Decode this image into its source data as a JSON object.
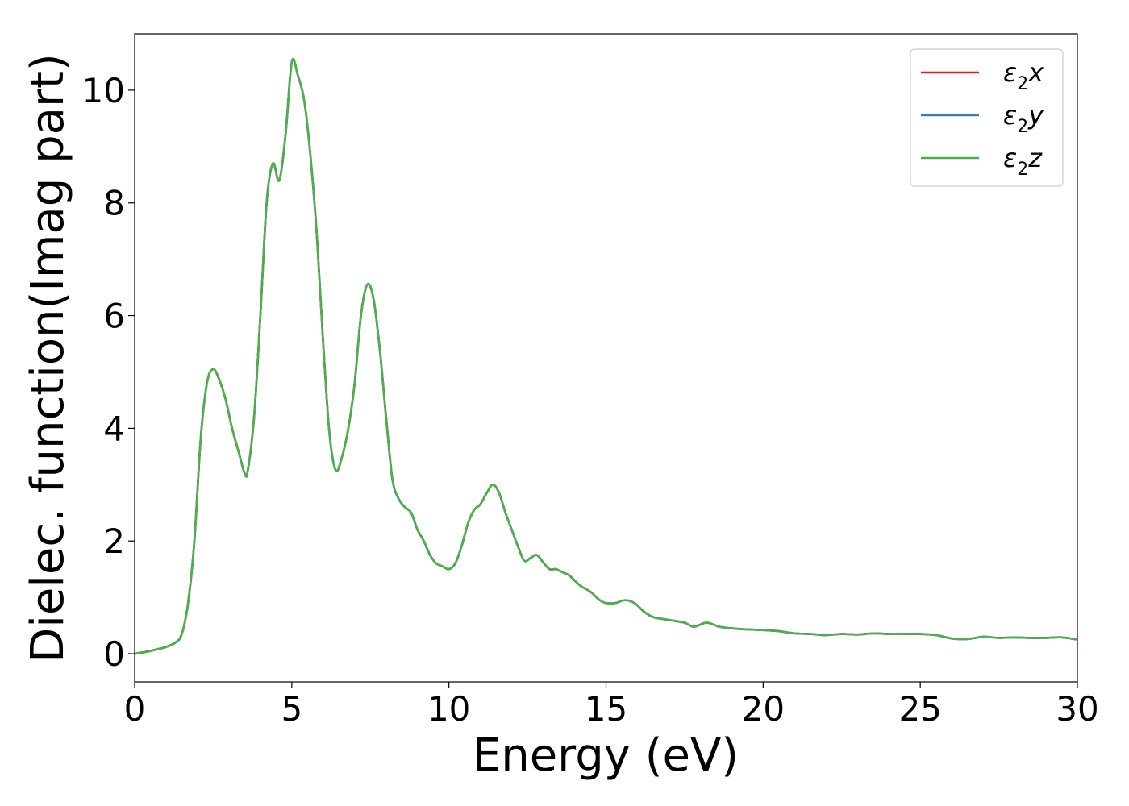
{
  "chart_data": {
    "type": "line",
    "title": "",
    "xlabel": "Energy (eV)",
    "ylabel": "Dielec. function(Imag part)",
    "xlim": [
      0,
      30
    ],
    "ylim": [
      -0.5,
      11.0
    ],
    "xticks": [
      0,
      5,
      10,
      15,
      20,
      25,
      30
    ],
    "yticks": [
      0,
      2,
      4,
      6,
      8,
      10
    ],
    "xtick_labels": [
      "0",
      "5",
      "10",
      "15",
      "20",
      "25",
      "30"
    ],
    "ytick_labels": [
      "0",
      "2",
      "4",
      "6",
      "8",
      "10"
    ],
    "grid": false,
    "legend_position": "top-right",
    "x": [
      0.0,
      0.5,
      1.0,
      1.3,
      1.5,
      1.7,
      1.9,
      2.1,
      2.3,
      2.5,
      2.7,
      2.9,
      3.1,
      3.3,
      3.5,
      3.6,
      3.8,
      4.0,
      4.2,
      4.4,
      4.6,
      4.8,
      5.0,
      5.2,
      5.4,
      5.6,
      5.8,
      6.0,
      6.2,
      6.4,
      6.6,
      6.8,
      7.0,
      7.2,
      7.4,
      7.6,
      7.8,
      8.0,
      8.2,
      8.4,
      8.6,
      8.8,
      9.0,
      9.2,
      9.4,
      9.6,
      9.8,
      10.0,
      10.2,
      10.4,
      10.6,
      10.8,
      11.0,
      11.2,
      11.4,
      11.6,
      11.8,
      12.0,
      12.2,
      12.4,
      12.6,
      12.8,
      13.0,
      13.2,
      13.4,
      13.6,
      13.8,
      14.0,
      14.2,
      14.5,
      14.8,
      15.0,
      15.3,
      15.6,
      15.9,
      16.2,
      16.5,
      17.0,
      17.5,
      17.8,
      18.2,
      18.6,
      19.0,
      19.5,
      20.0,
      20.5,
      21.0,
      21.5,
      22.0,
      22.5,
      23.0,
      23.5,
      24.0,
      24.5,
      25.0,
      25.5,
      26.0,
      26.5,
      27.0,
      27.5,
      28.0,
      28.5,
      29.0,
      29.5,
      30.0
    ],
    "series": [
      {
        "name": "ε2x",
        "name_base": "ε",
        "name_sub": "2",
        "name_suffix": "x",
        "color": "#e41a1c",
        "values": [
          0.0,
          0.05,
          0.12,
          0.2,
          0.35,
          0.9,
          2.0,
          3.8,
          4.8,
          5.05,
          4.85,
          4.5,
          4.0,
          3.6,
          3.2,
          3.25,
          4.2,
          6.0,
          8.0,
          8.7,
          8.4,
          9.2,
          10.5,
          10.25,
          9.8,
          8.8,
          7.4,
          5.5,
          3.9,
          3.25,
          3.5,
          4.0,
          4.8,
          6.0,
          6.55,
          6.3,
          5.4,
          4.2,
          3.1,
          2.75,
          2.6,
          2.5,
          2.2,
          2.0,
          1.75,
          1.6,
          1.55,
          1.5,
          1.6,
          1.9,
          2.3,
          2.55,
          2.65,
          2.85,
          3.0,
          2.85,
          2.5,
          2.2,
          1.9,
          1.65,
          1.7,
          1.75,
          1.62,
          1.5,
          1.5,
          1.45,
          1.4,
          1.3,
          1.2,
          1.1,
          0.95,
          0.9,
          0.9,
          0.95,
          0.9,
          0.75,
          0.65,
          0.6,
          0.55,
          0.48,
          0.55,
          0.48,
          0.45,
          0.43,
          0.42,
          0.4,
          0.36,
          0.35,
          0.33,
          0.35,
          0.34,
          0.36,
          0.35,
          0.35,
          0.35,
          0.33,
          0.27,
          0.26,
          0.3,
          0.28,
          0.29,
          0.28,
          0.28,
          0.29,
          0.25
        ]
      },
      {
        "name": "ε2y",
        "name_base": "ε",
        "name_sub": "2",
        "name_suffix": "y",
        "color": "#377eb8",
        "values": [
          0.0,
          0.05,
          0.12,
          0.2,
          0.35,
          0.9,
          2.0,
          3.8,
          4.8,
          5.05,
          4.85,
          4.5,
          4.0,
          3.6,
          3.2,
          3.25,
          4.2,
          6.0,
          8.0,
          8.7,
          8.4,
          9.2,
          10.5,
          10.25,
          9.8,
          8.8,
          7.4,
          5.5,
          3.9,
          3.25,
          3.5,
          4.0,
          4.8,
          6.0,
          6.55,
          6.3,
          5.4,
          4.2,
          3.1,
          2.75,
          2.6,
          2.5,
          2.2,
          2.0,
          1.75,
          1.6,
          1.55,
          1.5,
          1.6,
          1.9,
          2.3,
          2.55,
          2.65,
          2.85,
          3.0,
          2.85,
          2.5,
          2.2,
          1.9,
          1.65,
          1.7,
          1.75,
          1.62,
          1.5,
          1.5,
          1.45,
          1.4,
          1.3,
          1.2,
          1.1,
          0.95,
          0.9,
          0.9,
          0.95,
          0.9,
          0.75,
          0.65,
          0.6,
          0.55,
          0.48,
          0.55,
          0.48,
          0.45,
          0.43,
          0.42,
          0.4,
          0.36,
          0.35,
          0.33,
          0.35,
          0.34,
          0.36,
          0.35,
          0.35,
          0.35,
          0.33,
          0.27,
          0.26,
          0.3,
          0.28,
          0.29,
          0.28,
          0.28,
          0.29,
          0.25
        ]
      },
      {
        "name": "ε2z",
        "name_base": "ε",
        "name_sub": "2",
        "name_suffix": "z",
        "color": "#4daf4a",
        "values": [
          0.0,
          0.05,
          0.12,
          0.2,
          0.35,
          0.9,
          2.0,
          3.8,
          4.8,
          5.05,
          4.85,
          4.5,
          4.0,
          3.6,
          3.2,
          3.25,
          4.2,
          6.0,
          8.0,
          8.7,
          8.4,
          9.2,
          10.5,
          10.25,
          9.8,
          8.8,
          7.4,
          5.5,
          3.9,
          3.25,
          3.5,
          4.0,
          4.8,
          6.0,
          6.55,
          6.3,
          5.4,
          4.2,
          3.1,
          2.75,
          2.6,
          2.5,
          2.2,
          2.0,
          1.75,
          1.6,
          1.55,
          1.5,
          1.6,
          1.9,
          2.3,
          2.55,
          2.65,
          2.85,
          3.0,
          2.85,
          2.5,
          2.2,
          1.9,
          1.65,
          1.7,
          1.75,
          1.62,
          1.5,
          1.5,
          1.45,
          1.4,
          1.3,
          1.2,
          1.1,
          0.95,
          0.9,
          0.9,
          0.95,
          0.9,
          0.75,
          0.65,
          0.6,
          0.55,
          0.48,
          0.55,
          0.48,
          0.45,
          0.43,
          0.42,
          0.4,
          0.36,
          0.35,
          0.33,
          0.35,
          0.34,
          0.36,
          0.35,
          0.35,
          0.35,
          0.33,
          0.27,
          0.26,
          0.3,
          0.28,
          0.29,
          0.28,
          0.28,
          0.29,
          0.25
        ]
      }
    ]
  }
}
